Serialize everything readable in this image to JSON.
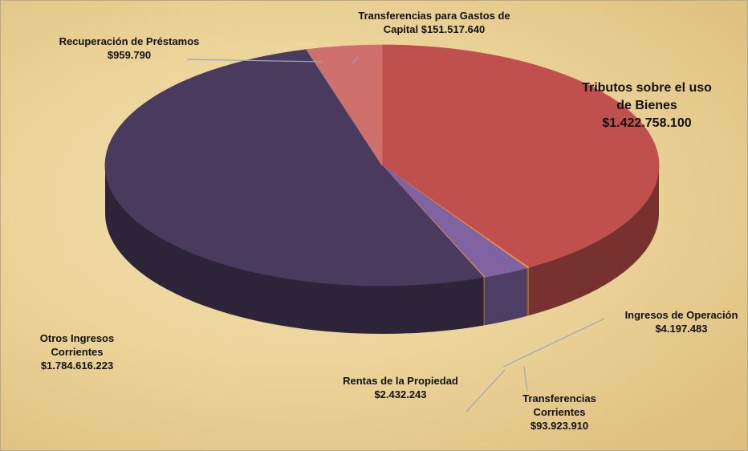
{
  "chart_data": {
    "type": "pie",
    "categories": [
      "Tributos sobre el uso de Bienes",
      "Ingresos de Operación",
      "Transferencias Corrientes",
      "Rentas de la Propiedad",
      "Otros Ingresos Corrientes",
      "Recuperación de Préstamos",
      "Transferencias para Gastos de Capital"
    ],
    "values": [
      1422758100,
      4197483,
      93923910,
      2432243,
      1784616223,
      959790,
      151517640
    ],
    "value_labels": [
      "$1.422.758.100",
      "$4.197.483",
      "$93.923.910",
      "$2.432.243",
      "$1.784.616.223",
      "$959.790",
      "$151.517.640"
    ],
    "colors": [
      "#c0504d",
      "#f79646",
      "#8064a2",
      "#f79646",
      "#4a3a5e",
      "#4bacc6",
      "#d0706d"
    ]
  }
}
